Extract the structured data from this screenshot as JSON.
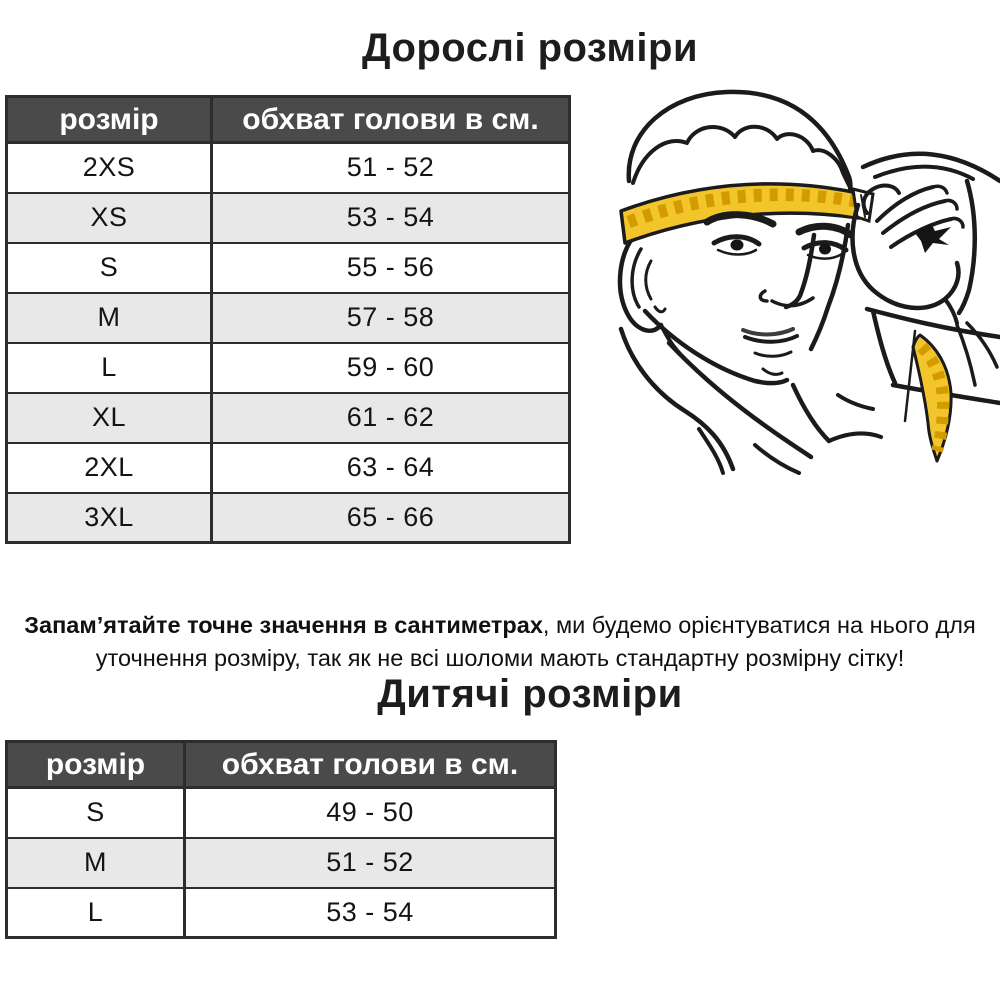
{
  "colors": {
    "page-bg": "#ffffff",
    "text": "#1c1c1c",
    "table-header-bg": "#4a4a4a",
    "table-header-text": "#ffffff",
    "table-border": "#2d2d2d",
    "row-alt-bg": "#e8e8e8",
    "row-bg": "#ffffff",
    "tape-fill": "#F3C52C",
    "tape-marks": "#D29C00",
    "line-art": "#1b1b1b"
  },
  "adult": {
    "title": "Дорослі розміри",
    "table": {
      "headers": [
        "розмір",
        "обхват голови в см."
      ],
      "rows": [
        [
          "2XS",
          "51 - 52"
        ],
        [
          "XS",
          "53 - 54"
        ],
        [
          "S",
          "55 - 56"
        ],
        [
          "M",
          "57 - 58"
        ],
        [
          "L",
          "59 - 60"
        ],
        [
          "XL",
          "61 - 62"
        ],
        [
          "2XL",
          "63 - 64"
        ],
        [
          "3XL",
          "65 - 66"
        ]
      ]
    }
  },
  "note": {
    "bold_part": "Запам’ятайте точне значення в сантиметрах",
    "regular_part": ", ми будемо орієнтуватися на нього для уточнення розміру, так як не всі шоломи мають стандартну розмірну сітку!"
  },
  "kids": {
    "title": "Дитячі розміри",
    "table": {
      "headers": [
        "розмір",
        "обхват голови в см."
      ],
      "rows": [
        [
          "S",
          "49 - 50"
        ],
        [
          "M",
          "51 - 52"
        ],
        [
          "L",
          "53 - 54"
        ]
      ]
    }
  },
  "illustration": {
    "name": "man-measuring-head-with-tape",
    "tape_fill": "#F3C52C",
    "tape_marks": "#D29C00"
  }
}
